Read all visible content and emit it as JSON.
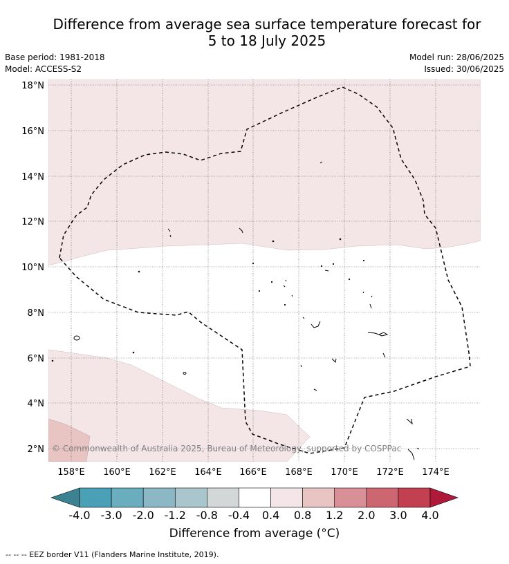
{
  "title_line1": "Difference from average sea surface temperature forecast for",
  "title_line2": "5 to 18 July 2025",
  "meta": {
    "base_period": "Base period: 1981-2018",
    "model": "Model: ACCESS-S2",
    "model_run": "Model run: 28/06/2025",
    "issued": "Issued: 30/06/2025"
  },
  "map": {
    "lon_ticks": [
      "158°E",
      "160°E",
      "162°E",
      "164°E",
      "166°E",
      "168°E",
      "170°E",
      "172°E",
      "174°E"
    ],
    "lat_ticks": [
      "18°N",
      "16°N",
      "14°N",
      "12°N",
      "10°N",
      "8°N",
      "6°N",
      "4°N",
      "2°N"
    ],
    "copyright": "© Commonwealth of Australia 2025, Bureau of Meteorology, supported by COSPPac",
    "colors": {
      "light_pink": "#f4e6e6",
      "pink": "#e8c4c2",
      "white": "#ffffff",
      "eez_line": "#000000"
    }
  },
  "colorbar": {
    "labels": [
      "-4.0",
      "-3.0",
      "-2.0",
      "-1.2",
      "-0.8",
      "-0.4",
      "0.4",
      "0.8",
      "1.2",
      "2.0",
      "3.0",
      "4.0"
    ],
    "colors": [
      "#3d8290",
      "#4aa0b4",
      "#6aadbf",
      "#8cb8c6",
      "#a8c6cc",
      "#d2d8d8",
      "#ffffff",
      "#f4e6e6",
      "#e8c4c2",
      "#d98f96",
      "#cc6670",
      "#c2404f",
      "#b01a3a"
    ],
    "label": "Difference from average (°C)"
  },
  "footnote": "--  --  -- EEZ border V11 (Flanders Marine Institute, 2019)."
}
